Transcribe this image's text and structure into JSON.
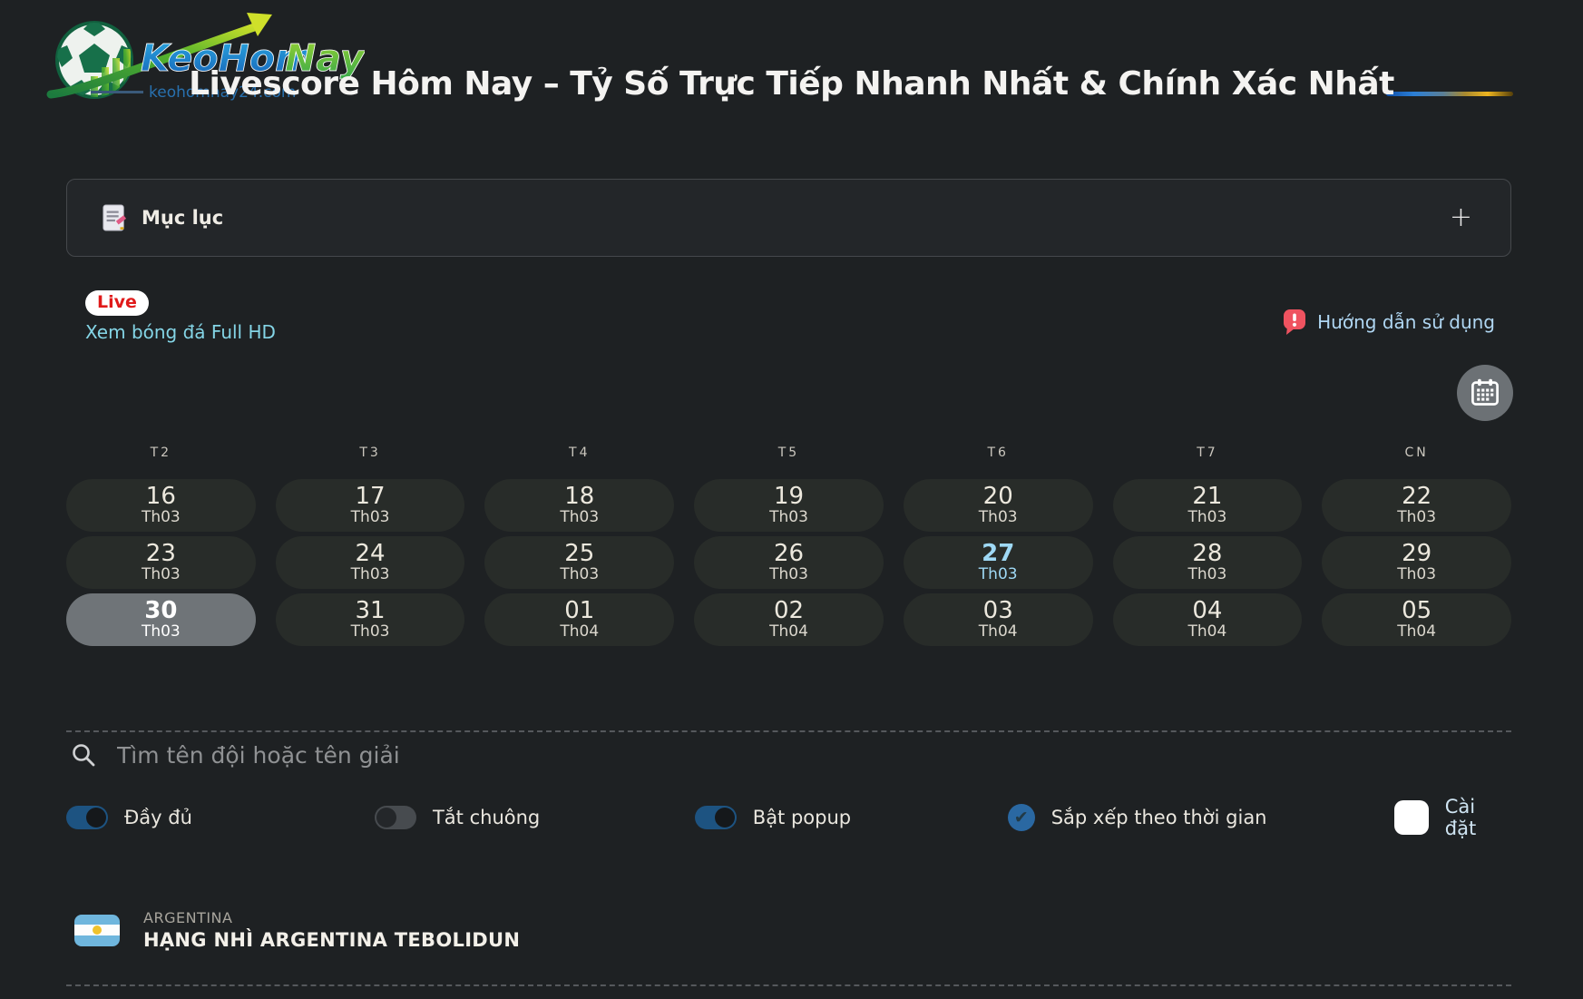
{
  "header": {
    "logo": {
      "text_blue": "KeoHom",
      "text_green": "Nay",
      "tagline": "keohomnay24.com"
    },
    "title": "Livescore Hôm Nay – Tỷ Số Trực Tiếp Nhanh Nhất & Chính Xác Nhất"
  },
  "toc": {
    "label": "Mục lục",
    "expand_symbol": "+"
  },
  "live": {
    "badge_label": "Live",
    "watch_link": "Xem bóng đá Full HD",
    "guide_link": "Hướng dẫn sử dụng",
    "guide_icon_glyph": "!"
  },
  "calendar": {
    "day_headers": [
      "T2",
      "T3",
      "T4",
      "T5",
      "T6",
      "T7",
      "CN"
    ],
    "cells": [
      {
        "day": "16",
        "month": "Th03",
        "state": "normal"
      },
      {
        "day": "17",
        "month": "Th03",
        "state": "normal"
      },
      {
        "day": "18",
        "month": "Th03",
        "state": "normal"
      },
      {
        "day": "19",
        "month": "Th03",
        "state": "normal"
      },
      {
        "day": "20",
        "month": "Th03",
        "state": "normal"
      },
      {
        "day": "21",
        "month": "Th03",
        "state": "normal"
      },
      {
        "day": "22",
        "month": "Th03",
        "state": "normal"
      },
      {
        "day": "23",
        "month": "Th03",
        "state": "normal"
      },
      {
        "day": "24",
        "month": "Th03",
        "state": "normal"
      },
      {
        "day": "25",
        "month": "Th03",
        "state": "normal"
      },
      {
        "day": "26",
        "month": "Th03",
        "state": "normal"
      },
      {
        "day": "27",
        "month": "Th03",
        "state": "today"
      },
      {
        "day": "28",
        "month": "Th03",
        "state": "normal"
      },
      {
        "day": "29",
        "month": "Th03",
        "state": "normal"
      },
      {
        "day": "30",
        "month": "Th03",
        "state": "selected"
      },
      {
        "day": "31",
        "month": "Th03",
        "state": "normal"
      },
      {
        "day": "01",
        "month": "Th04",
        "state": "normal"
      },
      {
        "day": "02",
        "month": "Th04",
        "state": "normal"
      },
      {
        "day": "03",
        "month": "Th04",
        "state": "normal"
      },
      {
        "day": "04",
        "month": "Th04",
        "state": "normal"
      },
      {
        "day": "05",
        "month": "Th04",
        "state": "normal"
      }
    ]
  },
  "search": {
    "placeholder": "Tìm tên đội hoặc tên giải"
  },
  "controls": {
    "full_toggle": {
      "label": "Đầy đủ",
      "state": "on"
    },
    "mute_toggle": {
      "label": "Tắt chuông",
      "state": "off"
    },
    "popup_toggle": {
      "label": "Bật popup",
      "state": "on"
    },
    "sort_checkbox": {
      "label": "Sắp xếp theo thời gian",
      "state": "checked",
      "icon_glyph": "✔"
    },
    "settings_button": {
      "label": "Cài đặt"
    }
  },
  "league": {
    "country": "ARGENTINA",
    "name": "HẠNG NHÌ ARGENTINA TEBOLIDUN"
  },
  "colors": {
    "page_bg": "#1e2123",
    "cell_bg": "#282c29",
    "selected_day_bg": "#6f7478",
    "today_blue": "#9fd9f5",
    "live_red": "#e01a1a",
    "watch_link_cyan": "#84d5e6",
    "guide_link_blue": "#b0d7f3",
    "toggle_on_blue": "#1d5381",
    "checkbox_blue": "#2a68a2",
    "flag_light_blue": "#6fb6dd",
    "gradient_line": [
      "#0f4fa8",
      "#edb41f"
    ]
  }
}
